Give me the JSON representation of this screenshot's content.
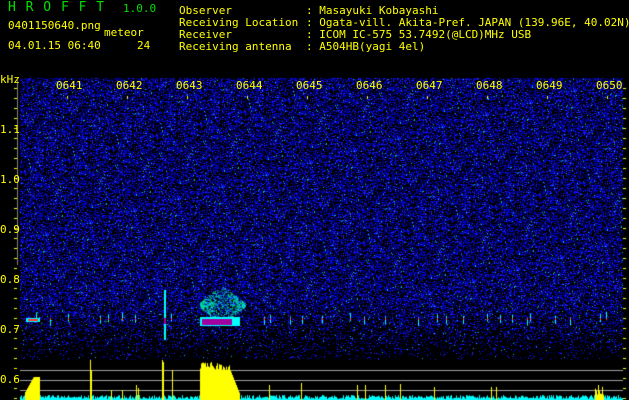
{
  "app": {
    "name": "H R O F F T",
    "version": "1.0.0"
  },
  "file": {
    "name": "0401150640.png",
    "datetime": "04.01.15 06:40"
  },
  "meteor": {
    "label": "meteor",
    "count": "24"
  },
  "info": [
    {
      "label": "Observer",
      "value": ": Masayuki Kobayashi"
    },
    {
      "label": "Receiving Location",
      "value": ": Ogata-vill. Akita-Pref. JAPAN (139.96E, 40.02N)"
    },
    {
      "label": "Receiver",
      "value": ": ICOM IC-575 53.7492(@LCD)MHz USB"
    },
    {
      "label": "Receiving antenna",
      "value": ": A504HB(yagi 4el)"
    }
  ],
  "spectrogram": {
    "y_unit": "kHz",
    "y_ticks": [
      "1.1",
      "1.0",
      "0.9",
      "0.8",
      "0.7",
      "0.6"
    ],
    "x_ticks": [
      "0641",
      "0642",
      "0643",
      "0644",
      "0645",
      "0646",
      "0647",
      "0648",
      "0649",
      "0650"
    ],
    "colors": {
      "noise": "#1a1aff",
      "signal": "#00ffff",
      "strong": "#ff3030",
      "core": "#a000a0",
      "bars": "#ffff00",
      "floor": "#00ffff",
      "label": "#ffff00"
    }
  }
}
